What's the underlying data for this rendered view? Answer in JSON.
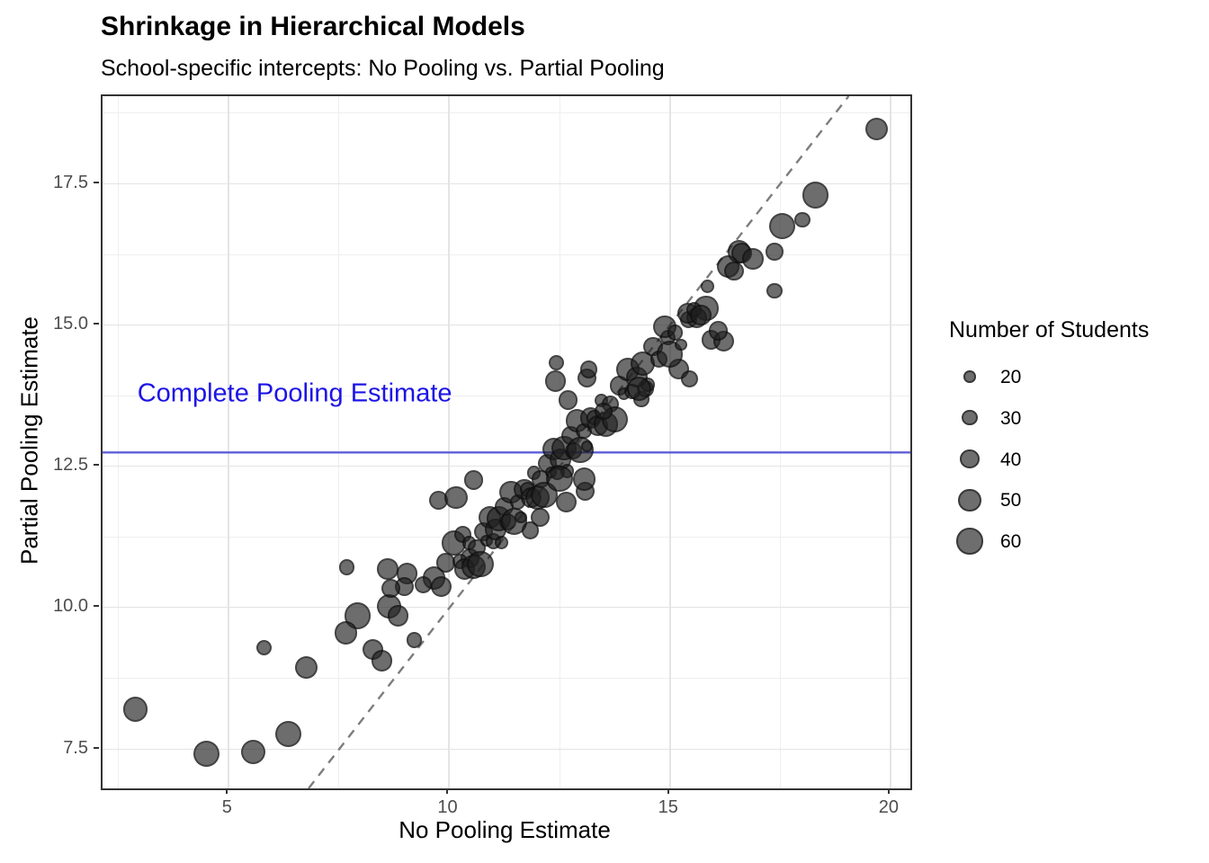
{
  "chart_data": {
    "type": "scatter",
    "title": "Shrinkage in Hierarchical Models",
    "subtitle": "School-specific intercepts: No Pooling vs. Partial Pooling",
    "xlabel": "No Pooling Estimate",
    "ylabel": "Partial Pooling Estimate",
    "xlim": [
      2.14,
      20.45
    ],
    "ylim": [
      6.81,
      19.05
    ],
    "x_ticks": [
      5,
      10,
      15,
      20
    ],
    "x_tick_labels": [
      "5",
      "10",
      "15",
      "20"
    ],
    "x_minor_ticks": [
      2.5,
      7.5,
      12.5,
      17.5
    ],
    "y_ticks": [
      7.5,
      10.0,
      12.5,
      15.0,
      17.5
    ],
    "y_tick_labels": [
      "7.5",
      "10.0",
      "12.5",
      "15.0",
      "17.5"
    ],
    "y_minor_ticks": [
      8.75,
      11.25,
      13.75,
      16.25,
      18.75
    ],
    "grid": true,
    "legend": {
      "title": "Number of Students",
      "position": "right",
      "items": [
        {
          "label": "20",
          "size": 20
        },
        {
          "label": "30",
          "size": 30
        },
        {
          "label": "40",
          "size": 40
        },
        {
          "label": "50",
          "size": 50
        },
        {
          "label": "60",
          "size": 60
        }
      ]
    },
    "reference_lines": {
      "identity": {
        "slope": 1,
        "intercept": 0,
        "style": "dashed",
        "color": "#7d7d7d"
      },
      "complete_pooling": {
        "y": 12.75,
        "style": "solid",
        "color": "#5e5ed8"
      }
    },
    "annotation": {
      "text": "Complete Pooling Estimate",
      "x": 2.93,
      "y": 13.79,
      "color": "#1c14e6",
      "anchor": "left"
    },
    "point_style": {
      "fill": "#1e1e1e",
      "fill_alpha": 0.65,
      "outline": "#000000"
    },
    "point_fields": [
      "no_pooling_estimate",
      "partial_pooling_estimate",
      "n_students"
    ],
    "points": [
      [
        2.88,
        8.21,
        55
      ],
      [
        4.49,
        7.42,
        60
      ],
      [
        5.55,
        7.45,
        55
      ],
      [
        5.8,
        9.3,
        30
      ],
      [
        6.35,
        7.77,
        60
      ],
      [
        6.76,
        8.95,
        50
      ],
      [
        7.67,
        10.72,
        30
      ],
      [
        7.92,
        9.86,
        60
      ],
      [
        7.65,
        9.56,
        50
      ],
      [
        8.27,
        9.27,
        45
      ],
      [
        8.47,
        9.07,
        45
      ],
      [
        9.2,
        9.43,
        30
      ],
      [
        8.63,
        10.03,
        55
      ],
      [
        8.84,
        9.86,
        45
      ],
      [
        8.6,
        10.69,
        45
      ],
      [
        9.04,
        10.61,
        45
      ],
      [
        8.98,
        10.38,
        40
      ],
      [
        8.67,
        10.35,
        40
      ],
      [
        9.65,
        10.53,
        50
      ],
      [
        9.82,
        10.38,
        45
      ],
      [
        9.92,
        10.8,
        40
      ],
      [
        9.41,
        10.41,
        35
      ],
      [
        10.47,
        10.88,
        40
      ],
      [
        10.1,
        11.15,
        55
      ],
      [
        10.3,
        11.3,
        35
      ],
      [
        9.76,
        11.9,
        40
      ],
      [
        10.15,
        11.95,
        50
      ],
      [
        10.55,
        12.26,
        40
      ],
      [
        11.84,
        11.37,
        35
      ],
      [
        12.06,
        11.6,
        40
      ],
      [
        12.65,
        11.87,
        45
      ],
      [
        13.08,
        12.06,
        40
      ],
      [
        13.06,
        12.28,
        50
      ],
      [
        12.43,
        14.34,
        30
      ],
      [
        12.41,
        14.01,
        45
      ],
      [
        12.69,
        13.68,
        40
      ],
      [
        13.12,
        14.07,
        40
      ],
      [
        13.16,
        14.22,
        35
      ],
      [
        14.35,
        13.69,
        30
      ],
      [
        14.45,
        13.88,
        35
      ],
      [
        15.2,
        14.23,
        45
      ],
      [
        15.45,
        14.05,
        35
      ],
      [
        15.93,
        14.74,
        40
      ],
      [
        16.22,
        14.72,
        45
      ],
      [
        16.1,
        14.9,
        40
      ],
      [
        14.96,
        14.78,
        30
      ],
      [
        15.43,
        15.1,
        35
      ],
      [
        15.82,
        15.3,
        55
      ],
      [
        15.61,
        15.13,
        45
      ],
      [
        16.32,
        16.04,
        50
      ],
      [
        16.57,
        16.3,
        50
      ],
      [
        16.63,
        16.28,
        45
      ],
      [
        16.88,
        16.17,
        45
      ],
      [
        16.45,
        15.96,
        40
      ],
      [
        17.37,
        16.3,
        35
      ],
      [
        17.55,
        16.75,
        60
      ],
      [
        17.37,
        15.61,
        30
      ],
      [
        18.0,
        16.86,
        30
      ],
      [
        18.3,
        17.3,
        60
      ],
      [
        19.68,
        18.47,
        50
      ],
      [
        10.25,
        10.82,
        30
      ],
      [
        10.35,
        10.69,
        45
      ],
      [
        10.45,
        11.15,
        25
      ],
      [
        10.55,
        10.73,
        55
      ],
      [
        10.62,
        11.06,
        35
      ],
      [
        10.7,
        10.78,
        60
      ],
      [
        10.78,
        11.35,
        40
      ],
      [
        10.85,
        11.19,
        20
      ],
      [
        10.92,
        11.6,
        50
      ],
      [
        11.0,
        11.18,
        30
      ],
      [
        11.05,
        11.39,
        45
      ],
      [
        11.12,
        11.58,
        55
      ],
      [
        11.18,
        11.16,
        25
      ],
      [
        11.25,
        11.79,
        40
      ],
      [
        11.32,
        11.52,
        35
      ],
      [
        11.4,
        12.05,
        50
      ],
      [
        11.47,
        11.53,
        60
      ],
      [
        11.55,
        11.87,
        30
      ],
      [
        11.62,
        11.6,
        20
      ],
      [
        11.7,
        12.1,
        45
      ],
      [
        11.77,
        12.1,
        30
      ],
      [
        11.85,
        11.95,
        45
      ],
      [
        11.92,
        12.39,
        25
      ],
      [
        12.0,
        11.95,
        55
      ],
      [
        12.07,
        12.28,
        35
      ],
      [
        12.15,
        12.0,
        60
      ],
      [
        12.22,
        12.56,
        40
      ],
      [
        12.3,
        12.4,
        20
      ],
      [
        12.37,
        12.81,
        50
      ],
      [
        12.45,
        12.4,
        30
      ],
      [
        12.52,
        12.63,
        45
      ],
      [
        12.6,
        12.83,
        55
      ],
      [
        12.67,
        12.42,
        25
      ],
      [
        12.75,
        13.05,
        40
      ],
      [
        12.82,
        12.78,
        35
      ],
      [
        12.9,
        13.31,
        50
      ],
      [
        12.97,
        12.79,
        60
      ],
      [
        13.05,
        13.13,
        30
      ],
      [
        13.12,
        12.86,
        20
      ],
      [
        13.2,
        13.36,
        45
      ],
      [
        13.28,
        13.37,
        30
      ],
      [
        13.37,
        13.22,
        45
      ],
      [
        13.45,
        13.67,
        25
      ],
      [
        13.55,
        13.25,
        55
      ],
      [
        13.65,
        13.61,
        35
      ],
      [
        13.75,
        13.34,
        60
      ],
      [
        13.85,
        13.93,
        40
      ],
      [
        13.95,
        13.79,
        20
      ],
      [
        14.05,
        14.22,
        50
      ],
      [
        14.15,
        13.83,
        30
      ],
      [
        14.25,
        14.08,
        45
      ],
      [
        14.38,
        14.32,
        55
      ],
      [
        14.5,
        13.95,
        25
      ],
      [
        14.62,
        14.62,
        40
      ],
      [
        14.75,
        14.4,
        35
      ],
      [
        14.88,
        14.97,
        50
      ],
      [
        15.0,
        14.49,
        60
      ],
      [
        15.12,
        14.87,
        30
      ],
      [
        15.25,
        14.65,
        20
      ],
      [
        15.4,
        15.21,
        45
      ],
      [
        15.55,
        15.27,
        30
      ],
      [
        15.7,
        15.18,
        45
      ],
      [
        15.85,
        15.69,
        25
      ],
      [
        14.3,
        13.88,
        55
      ],
      [
        13.5,
        13.48,
        35
      ],
      [
        12.5,
        12.29,
        60
      ]
    ]
  }
}
